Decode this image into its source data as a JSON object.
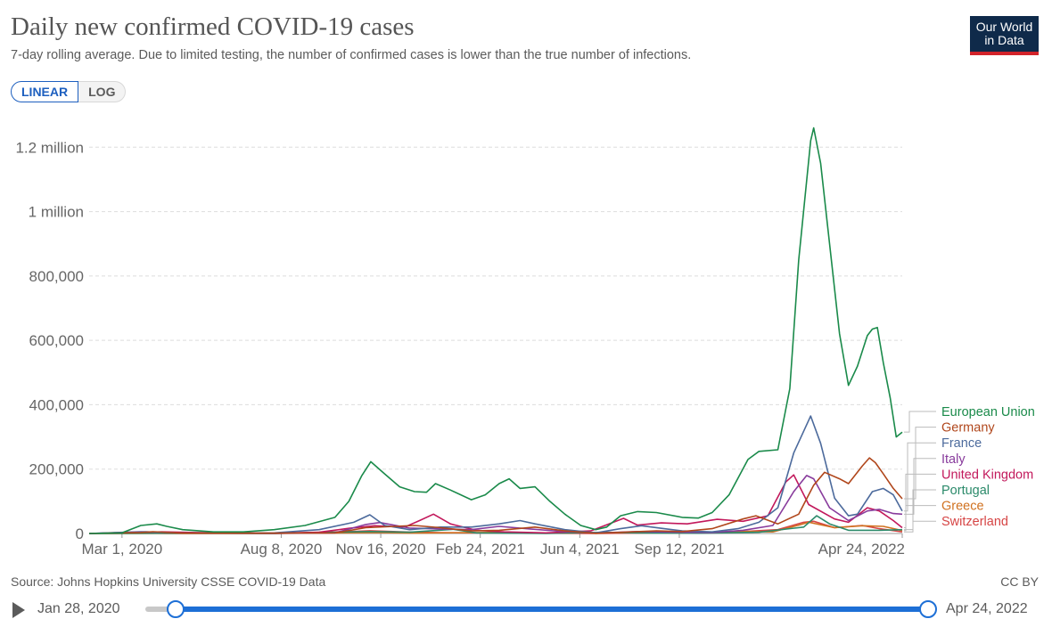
{
  "header": {
    "title": "Daily new confirmed COVID-19 cases",
    "subtitle": "7-day rolling average. Due to limited testing, the number of confirmed cases is lower than the true number of infections.",
    "logo_line1": "Our World",
    "logo_line2": "in Data"
  },
  "controls": {
    "linear_label": "LINEAR",
    "log_label": "LOG",
    "active_scale": "linear"
  },
  "footer": {
    "source": "Source: Johns Hopkins University CSSE COVID-19 Data",
    "license": "CC BY"
  },
  "timeline": {
    "start_label": "Jan 28, 2020",
    "end_label": "Apr 24, 2022"
  },
  "colors": {
    "accent": "#1d6fd6",
    "logo_bg": "#0f2a4a",
    "logo_stripe": "#d2232a"
  },
  "chart_data": {
    "type": "line",
    "x_unit": "date",
    "x_range": [
      "2020-01-28",
      "2022-04-24"
    ],
    "ylim": [
      0,
      1270000
    ],
    "y_ticks": [
      {
        "value": 0,
        "label": "0"
      },
      {
        "value": 200000,
        "label": "200,000"
      },
      {
        "value": 400000,
        "label": "400,000"
      },
      {
        "value": 600000,
        "label": "600,000"
      },
      {
        "value": 800000,
        "label": "800,000"
      },
      {
        "value": 1000000,
        "label": "1 million"
      },
      {
        "value": 1200000,
        "label": "1.2 million"
      }
    ],
    "x_ticks": [
      {
        "date": "2020-03-01",
        "label": "Mar 1, 2020"
      },
      {
        "date": "2020-08-08",
        "label": "Aug 8, 2020"
      },
      {
        "date": "2020-11-16",
        "label": "Nov 16, 2020"
      },
      {
        "date": "2021-02-24",
        "label": "Feb 24, 2021"
      },
      {
        "date": "2021-06-04",
        "label": "Jun 4, 2021"
      },
      {
        "date": "2021-09-12",
        "label": "Sep 12, 2021"
      },
      {
        "date": "2022-04-24",
        "label": "Apr 24, 2022"
      }
    ],
    "grid": true,
    "legend_placement": "right",
    "series": [
      {
        "name": "European Union",
        "color": "#1a8a4a",
        "points": [
          [
            "2020-01-28",
            0
          ],
          [
            "2020-03-01",
            2000
          ],
          [
            "2020-03-20",
            25000
          ],
          [
            "2020-04-05",
            30000
          ],
          [
            "2020-04-15",
            22000
          ],
          [
            "2020-05-01",
            12000
          ],
          [
            "2020-06-01",
            5000
          ],
          [
            "2020-07-01",
            5000
          ],
          [
            "2020-08-01",
            12000
          ],
          [
            "2020-09-01",
            25000
          ],
          [
            "2020-10-01",
            50000
          ],
          [
            "2020-10-15",
            100000
          ],
          [
            "2020-10-28",
            180000
          ],
          [
            "2020-11-06",
            223000
          ],
          [
            "2020-11-20",
            185000
          ],
          [
            "2020-12-05",
            145000
          ],
          [
            "2020-12-20",
            130000
          ],
          [
            "2021-01-01",
            128000
          ],
          [
            "2021-01-10",
            155000
          ],
          [
            "2021-01-25",
            135000
          ],
          [
            "2021-02-15",
            105000
          ],
          [
            "2021-03-01",
            120000
          ],
          [
            "2021-03-15",
            155000
          ],
          [
            "2021-03-25",
            170000
          ],
          [
            "2021-04-05",
            140000
          ],
          [
            "2021-04-20",
            145000
          ],
          [
            "2021-05-05",
            100000
          ],
          [
            "2021-05-20",
            60000
          ],
          [
            "2021-06-05",
            25000
          ],
          [
            "2021-06-20",
            12000
          ],
          [
            "2021-07-01",
            20000
          ],
          [
            "2021-07-15",
            55000
          ],
          [
            "2021-08-01",
            68000
          ],
          [
            "2021-08-20",
            65000
          ],
          [
            "2021-09-15",
            50000
          ],
          [
            "2021-10-01",
            48000
          ],
          [
            "2021-10-15",
            65000
          ],
          [
            "2021-11-01",
            120000
          ],
          [
            "2021-11-20",
            230000
          ],
          [
            "2021-12-01",
            255000
          ],
          [
            "2021-12-20",
            260000
          ],
          [
            "2022-01-01",
            450000
          ],
          [
            "2022-01-10",
            850000
          ],
          [
            "2022-01-22",
            1220000
          ],
          [
            "2022-01-25",
            1260000
          ],
          [
            "2022-02-01",
            1150000
          ],
          [
            "2022-02-10",
            900000
          ],
          [
            "2022-02-20",
            620000
          ],
          [
            "2022-03-01",
            460000
          ],
          [
            "2022-03-10",
            520000
          ],
          [
            "2022-03-20",
            615000
          ],
          [
            "2022-03-25",
            635000
          ],
          [
            "2022-03-30",
            640000
          ],
          [
            "2022-04-05",
            530000
          ],
          [
            "2022-04-12",
            420000
          ],
          [
            "2022-04-18",
            300000
          ],
          [
            "2022-04-24",
            315000
          ]
        ]
      },
      {
        "name": "Germany",
        "color": "#b0461b",
        "points": [
          [
            "2020-01-28",
            0
          ],
          [
            "2020-03-20",
            3000
          ],
          [
            "2020-04-01",
            5500
          ],
          [
            "2020-05-01",
            1000
          ],
          [
            "2020-08-01",
            1000
          ],
          [
            "2020-10-01",
            2000
          ],
          [
            "2020-11-01",
            18000
          ],
          [
            "2020-12-20",
            25000
          ],
          [
            "2021-01-15",
            18000
          ],
          [
            "2021-02-15",
            8000
          ],
          [
            "2021-03-15",
            10000
          ],
          [
            "2021-04-20",
            20000
          ],
          [
            "2021-05-20",
            8000
          ],
          [
            "2021-06-20",
            600
          ],
          [
            "2021-08-20",
            8000
          ],
          [
            "2021-09-15",
            6000
          ],
          [
            "2021-10-15",
            15000
          ],
          [
            "2021-11-15",
            45000
          ],
          [
            "2021-11-28",
            55000
          ],
          [
            "2021-12-20",
            30000
          ],
          [
            "2022-01-10",
            60000
          ],
          [
            "2022-01-25",
            150000
          ],
          [
            "2022-02-05",
            190000
          ],
          [
            "2022-02-20",
            170000
          ],
          [
            "2022-03-01",
            155000
          ],
          [
            "2022-03-15",
            210000
          ],
          [
            "2022-03-22",
            235000
          ],
          [
            "2022-03-28",
            220000
          ],
          [
            "2022-04-05",
            185000
          ],
          [
            "2022-04-15",
            140000
          ],
          [
            "2022-04-24",
            108000
          ]
        ]
      },
      {
        "name": "France",
        "color": "#4c6a9c",
        "points": [
          [
            "2020-01-28",
            0
          ],
          [
            "2020-03-25",
            5000
          ],
          [
            "2020-04-05",
            4000
          ],
          [
            "2020-05-01",
            1000
          ],
          [
            "2020-08-01",
            2000
          ],
          [
            "2020-09-15",
            12000
          ],
          [
            "2020-10-20",
            35000
          ],
          [
            "2020-11-05",
            58000
          ],
          [
            "2020-11-20",
            25000
          ],
          [
            "2020-12-15",
            12000
          ],
          [
            "2021-01-15",
            20000
          ],
          [
            "2021-02-15",
            20000
          ],
          [
            "2021-03-15",
            30000
          ],
          [
            "2021-04-05",
            40000
          ],
          [
            "2021-04-20",
            30000
          ],
          [
            "2021-05-20",
            12000
          ],
          [
            "2021-06-20",
            2000
          ],
          [
            "2021-07-15",
            15000
          ],
          [
            "2021-08-05",
            24000
          ],
          [
            "2021-08-25",
            16000
          ],
          [
            "2021-09-15",
            8000
          ],
          [
            "2021-10-15",
            5000
          ],
          [
            "2021-11-10",
            15000
          ],
          [
            "2021-12-01",
            35000
          ],
          [
            "2021-12-20",
            80000
          ],
          [
            "2022-01-05",
            250000
          ],
          [
            "2022-01-22",
            365000
          ],
          [
            "2022-02-01",
            280000
          ],
          [
            "2022-02-15",
            110000
          ],
          [
            "2022-03-01",
            55000
          ],
          [
            "2022-03-10",
            60000
          ],
          [
            "2022-03-25",
            130000
          ],
          [
            "2022-04-05",
            140000
          ],
          [
            "2022-04-15",
            120000
          ],
          [
            "2022-04-24",
            70000
          ]
        ]
      },
      {
        "name": "Italy",
        "color": "#883b9c",
        "points": [
          [
            "2020-01-28",
            0
          ],
          [
            "2020-03-20",
            5500
          ],
          [
            "2020-04-05",
            4500
          ],
          [
            "2020-05-01",
            1500
          ],
          [
            "2020-08-01",
            500
          ],
          [
            "2020-10-01",
            2000
          ],
          [
            "2020-11-01",
            28000
          ],
          [
            "2020-11-15",
            34000
          ],
          [
            "2020-12-15",
            17000
          ],
          [
            "2021-01-15",
            14000
          ],
          [
            "2021-02-15",
            12000
          ],
          [
            "2021-03-15",
            22000
          ],
          [
            "2021-04-15",
            14000
          ],
          [
            "2021-05-15",
            7000
          ],
          [
            "2021-06-20",
            1000
          ],
          [
            "2021-08-01",
            6000
          ],
          [
            "2021-09-15",
            4000
          ],
          [
            "2021-10-15",
            3000
          ],
          [
            "2021-11-15",
            10000
          ],
          [
            "2021-12-15",
            25000
          ],
          [
            "2022-01-05",
            130000
          ],
          [
            "2022-01-18",
            180000
          ],
          [
            "2022-01-25",
            170000
          ],
          [
            "2022-02-10",
            80000
          ],
          [
            "2022-03-01",
            40000
          ],
          [
            "2022-03-20",
            70000
          ],
          [
            "2022-04-01",
            75000
          ],
          [
            "2022-04-15",
            62000
          ],
          [
            "2022-04-24",
            60000
          ]
        ]
      },
      {
        "name": "United Kingdom",
        "color": "#c2185b",
        "points": [
          [
            "2020-01-28",
            0
          ],
          [
            "2020-04-10",
            5000
          ],
          [
            "2020-05-15",
            3000
          ],
          [
            "2020-08-01",
            800
          ],
          [
            "2020-09-15",
            4000
          ],
          [
            "2020-10-15",
            16000
          ],
          [
            "2020-11-10",
            24000
          ],
          [
            "2020-12-10",
            20000
          ],
          [
            "2020-12-25",
            40000
          ],
          [
            "2021-01-08",
            60000
          ],
          [
            "2021-01-25",
            30000
          ],
          [
            "2021-02-20",
            10000
          ],
          [
            "2021-03-20",
            5000
          ],
          [
            "2021-05-01",
            2000
          ],
          [
            "2021-06-15",
            8000
          ],
          [
            "2021-07-18",
            47000
          ],
          [
            "2021-08-01",
            26000
          ],
          [
            "2021-08-25",
            33000
          ],
          [
            "2021-09-20",
            30000
          ],
          [
            "2021-10-20",
            44000
          ],
          [
            "2021-11-15",
            38000
          ],
          [
            "2021-12-10",
            55000
          ],
          [
            "2021-12-28",
            160000
          ],
          [
            "2022-01-05",
            182000
          ],
          [
            "2022-01-20",
            90000
          ],
          [
            "2022-02-15",
            45000
          ],
          [
            "2022-03-01",
            35000
          ],
          [
            "2022-03-20",
            80000
          ],
          [
            "2022-04-01",
            70000
          ],
          [
            "2022-04-15",
            40000
          ],
          [
            "2022-04-24",
            18000
          ]
        ]
      },
      {
        "name": "Portugal",
        "color": "#2b8a6a",
        "points": [
          [
            "2020-01-28",
            0
          ],
          [
            "2020-04-05",
            800
          ],
          [
            "2020-08-01",
            300
          ],
          [
            "2020-11-05",
            6000
          ],
          [
            "2020-12-15",
            4000
          ],
          [
            "2021-01-28",
            13000
          ],
          [
            "2021-02-20",
            2000
          ],
          [
            "2021-05-01",
            400
          ],
          [
            "2021-07-01",
            3500
          ],
          [
            "2021-08-01",
            2000
          ],
          [
            "2021-10-01",
            700
          ],
          [
            "2021-12-01",
            4000
          ],
          [
            "2022-01-15",
            20000
          ],
          [
            "2022-01-28",
            55000
          ],
          [
            "2022-02-10",
            30000
          ],
          [
            "2022-03-01",
            10000
          ],
          [
            "2022-04-01",
            10000
          ],
          [
            "2022-04-24",
            12000
          ]
        ]
      },
      {
        "name": "Greece",
        "color": "#d0711f",
        "points": [
          [
            "2020-01-28",
            0
          ],
          [
            "2020-08-01",
            200
          ],
          [
            "2020-11-15",
            2800
          ],
          [
            "2020-12-15",
            1200
          ],
          [
            "2021-03-20",
            3500
          ],
          [
            "2021-05-01",
            1500
          ],
          [
            "2021-07-20",
            3000
          ],
          [
            "2021-09-15",
            2000
          ],
          [
            "2021-11-15",
            6500
          ],
          [
            "2021-12-15",
            5000
          ],
          [
            "2022-01-10",
            26000
          ],
          [
            "2022-01-20",
            35000
          ],
          [
            "2022-02-15",
            18000
          ],
          [
            "2022-03-15",
            24000
          ],
          [
            "2022-04-05",
            22000
          ],
          [
            "2022-04-24",
            9000
          ]
        ]
      },
      {
        "name": "Switzerland",
        "color": "#d64545",
        "points": [
          [
            "2020-01-28",
            0
          ],
          [
            "2020-03-25",
            1100
          ],
          [
            "2020-04-15",
            500
          ],
          [
            "2020-08-01",
            150
          ],
          [
            "2020-10-20",
            6500
          ],
          [
            "2020-11-05",
            8500
          ],
          [
            "2020-12-15",
            4500
          ],
          [
            "2021-01-15",
            2500
          ],
          [
            "2021-03-15",
            1500
          ],
          [
            "2021-06-20",
            200
          ],
          [
            "2021-09-01",
            2500
          ],
          [
            "2021-11-15",
            6000
          ],
          [
            "2021-12-20",
            12000
          ],
          [
            "2022-01-15",
            35000
          ],
          [
            "2022-01-25",
            38000
          ],
          [
            "2022-02-15",
            18000
          ],
          [
            "2022-03-15",
            25000
          ],
          [
            "2022-04-01",
            15000
          ],
          [
            "2022-04-24",
            5000
          ]
        ]
      }
    ]
  }
}
